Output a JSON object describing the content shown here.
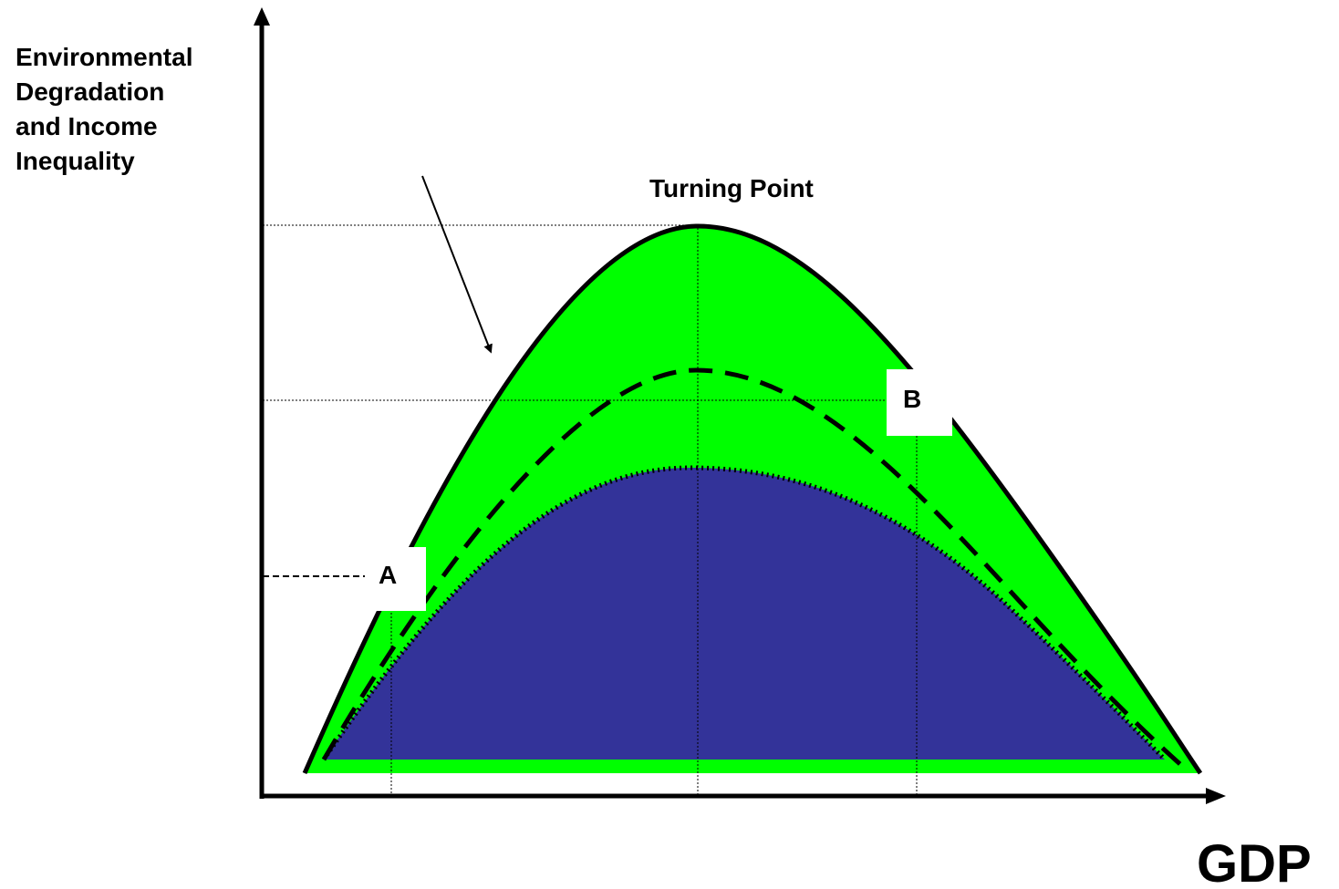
{
  "diagram": {
    "y_axis_label_lines": [
      "Environmental",
      "Degradation",
      "and Income",
      "Inequality"
    ],
    "x_axis_label": "GDP",
    "turning_point_label": "Turning Point",
    "point_a_label": "A",
    "point_b_label": "B"
  },
  "colors": {
    "outer_fill": "#00ff00",
    "inner_fill": "#333399",
    "line": "#000000",
    "background": "#ffffff"
  }
}
